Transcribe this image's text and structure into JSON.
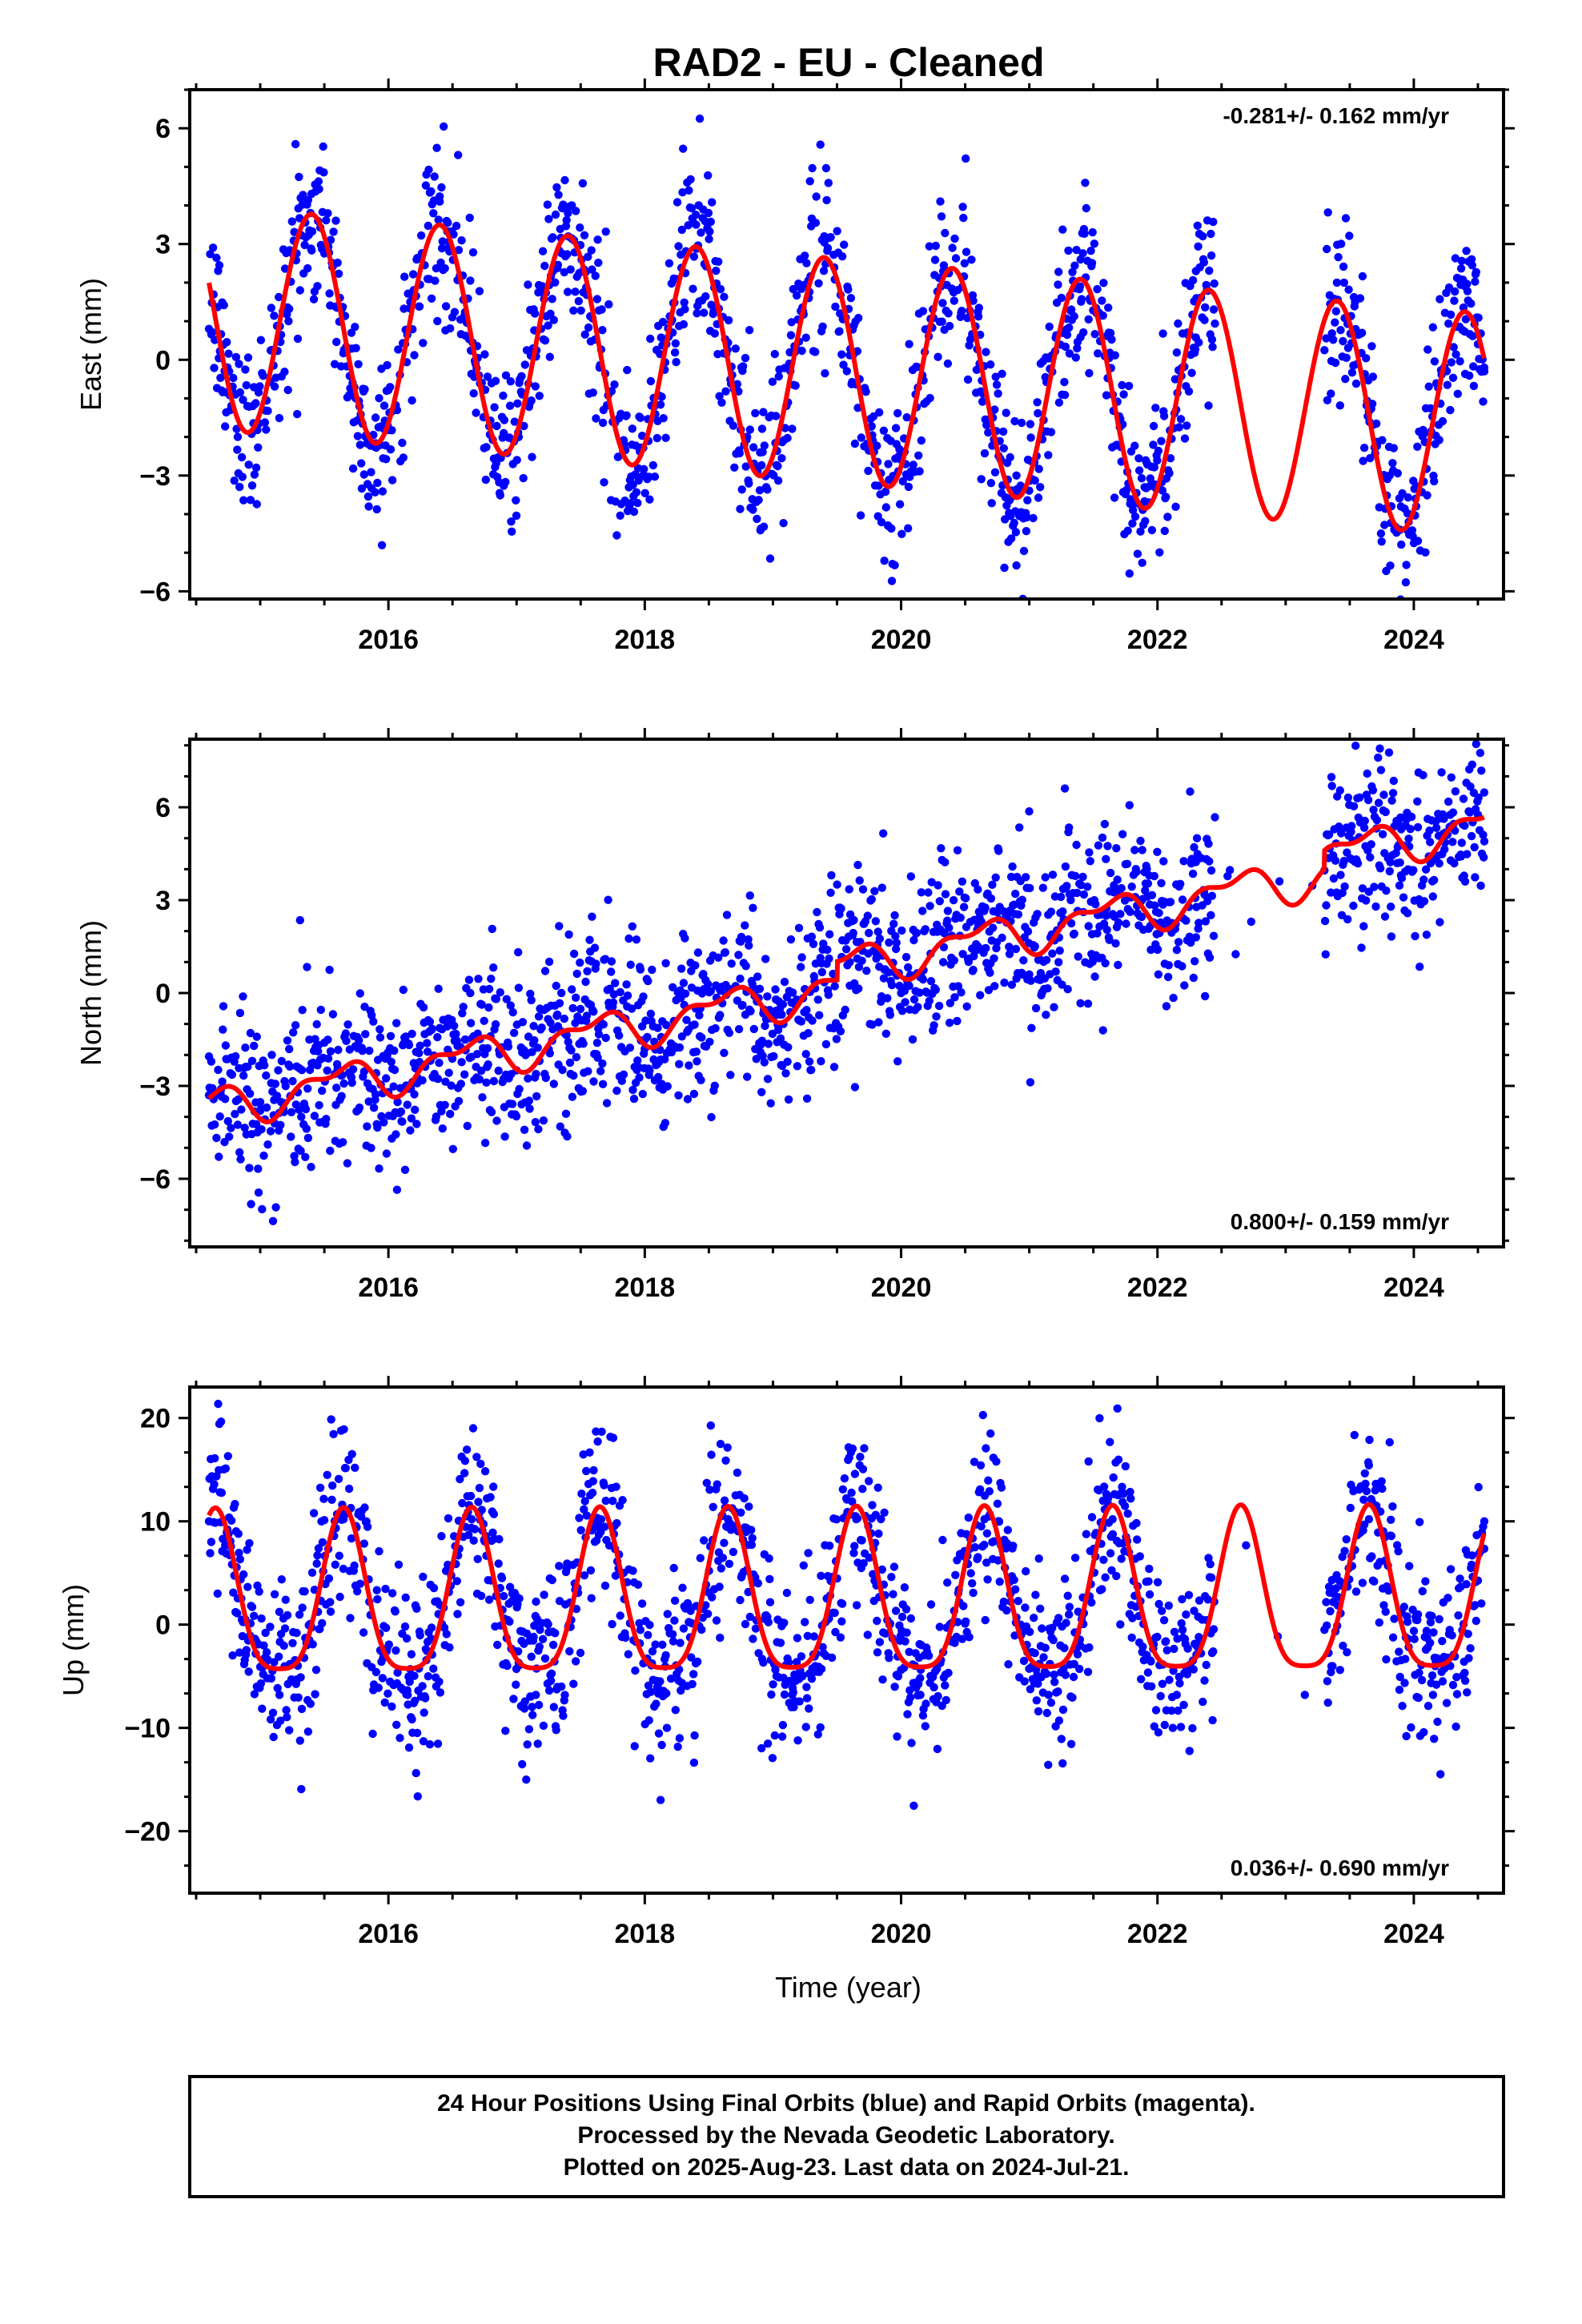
{
  "title": "RAD2  - EU - Cleaned",
  "footer": {
    "lines": [
      "24 Hour Positions Using Final Orbits (blue) and Rapid Orbits (magenta).",
      "Processed by the Nevada Geodetic Laboratory.",
      "Plotted on 2025-Aug-23. Last data on 2024-Jul-21."
    ]
  },
  "colors": {
    "data_points": "#0000ff",
    "model_fit": "#ff0000",
    "frame": "#000000"
  },
  "chart_data": [
    {
      "type": "scatter",
      "component": "east",
      "ylabel": "East (mm)",
      "xlabel": "",
      "xlim": [
        2014.45,
        2024.7
      ],
      "ylim": [
        -6.2,
        7.0
      ],
      "x_ticks": [
        2016,
        2018,
        2020,
        2022,
        2024
      ],
      "x_tick_labels": [
        "2016",
        "2018",
        "2020",
        "2022",
        "2024"
      ],
      "y_ticks": [
        -6,
        -3,
        0,
        3,
        6
      ],
      "y_tick_labels": [
        "−6",
        "−3",
        "0",
        "3",
        "6"
      ],
      "rate_label": "-0.281+/- 0.162 mm/yr",
      "rate_position": "top-right",
      "data_span": [
        2014.6,
        2024.55
      ],
      "gaps": [
        [
          2022.45,
          2023.3
        ]
      ],
      "series": [
        {
          "kind": "points",
          "x": [
            2014.6,
            2014.9,
            2015.4,
            2015.9,
            2016.4,
            2016.9,
            2017.4,
            2017.9,
            2018.4,
            2018.9,
            2019.4,
            2019.9,
            2020.4,
            2020.9,
            2021.4,
            2021.9,
            2022.3,
            2023.4,
            2023.9,
            2024.4,
            2024.55
          ],
          "y": [
            0.8,
            -1.2,
            4.3,
            -1.5,
            4.1,
            -1.9,
            3.8,
            -2.2,
            3.5,
            -2.4,
            3.2,
            -2.7,
            2.9,
            -3.0,
            2.6,
            -3.3,
            2.3,
            2.0,
            -3.8,
            1.9,
            -0.3
          ]
        },
        {
          "kind": "model",
          "model": {
            "t0": 2014.6,
            "t1": 2024.55,
            "offset": 1.1,
            "trend": -0.281,
            "amp1": 2.9,
            "phase1": 2015.4,
            "amp2": 0.0,
            "phase2": 2015.0,
            "jumps": []
          }
        }
      ]
    },
    {
      "type": "scatter",
      "component": "north",
      "ylabel": "North (mm)",
      "xlabel": "",
      "xlim": [
        2014.45,
        2024.7
      ],
      "ylim": [
        -8.2,
        8.2
      ],
      "x_ticks": [
        2016,
        2018,
        2020,
        2022,
        2024
      ],
      "x_tick_labels": [
        "2016",
        "2018",
        "2020",
        "2022",
        "2024"
      ],
      "y_ticks": [
        -6,
        -3,
        0,
        3,
        6
      ],
      "y_tick_labels": [
        "−6",
        "−3",
        "0",
        "3",
        "6"
      ],
      "rate_label": "0.800+/- 0.159 mm/yr",
      "rate_position": "bottom-right",
      "data_span": [
        2014.6,
        2024.55
      ],
      "gaps": [
        [
          2022.45,
          2023.3
        ]
      ],
      "series": [
        {
          "kind": "points",
          "x": [
            2014.6,
            2015.0,
            2015.6,
            2016.0,
            2016.6,
            2017.0,
            2017.6,
            2018.0,
            2018.6,
            2019.0,
            2019.6,
            2020.0,
            2020.6,
            2021.0,
            2021.6,
            2022.0,
            2022.3,
            2023.4,
            2023.9,
            2024.4,
            2024.55
          ],
          "y": [
            -3.3,
            -3.8,
            -2.3,
            -3.2,
            -1.5,
            -2.5,
            -0.6,
            -1.8,
            0.2,
            -0.8,
            1.0,
            0.0,
            1.5,
            0.6,
            2.5,
            1.4,
            1.8,
            3.2,
            3.8,
            3.6,
            4.9
          ]
        },
        {
          "kind": "model",
          "model": {
            "t0": 2014.6,
            "t1": 2024.55,
            "offset": 1.1,
            "trend": 0.8,
            "amp1": 0.55,
            "phase1": 2015.6,
            "amp2": 0.3,
            "phase2": 2015.3,
            "jumps": [
              [
                2019.5,
                0.6
              ],
              [
                2023.3,
                0.6
              ]
            ],
            "base": -3.7
          }
        }
      ]
    },
    {
      "type": "scatter",
      "component": "up",
      "ylabel": "Up (mm)",
      "xlabel": "Time (year)",
      "xlim": [
        2014.45,
        2024.7
      ],
      "ylim": [
        -26,
        23
      ],
      "x_ticks": [
        2016,
        2018,
        2020,
        2022,
        2024
      ],
      "x_tick_labels": [
        "2016",
        "2018",
        "2020",
        "2022",
        "2024"
      ],
      "y_ticks": [
        -20,
        -10,
        0,
        10,
        20
      ],
      "y_tick_labels": [
        "−20",
        "−10",
        "0",
        "10",
        "20"
      ],
      "rate_label": "0.036+/- 0.690 mm/yr",
      "rate_position": "bottom-right",
      "data_span": [
        2014.6,
        2024.55
      ],
      "gaps": [
        [
          2022.45,
          2023.3
        ]
      ],
      "series": [
        {
          "kind": "points",
          "x": [
            2014.6,
            2015.15,
            2015.65,
            2016.15,
            2016.65,
            2017.15,
            2017.65,
            2018.15,
            2018.65,
            2019.15,
            2019.65,
            2020.15,
            2020.65,
            2021.15,
            2021.65,
            2022.15,
            2023.15,
            2023.65,
            2024.15,
            2024.55
          ],
          "y": [
            10.0,
            -6.8,
            10.2,
            -6.8,
            10.2,
            -6.8,
            10.2,
            -6.8,
            10.2,
            -6.8,
            10.2,
            -6.8,
            10.2,
            -6.8,
            10.2,
            -6.8,
            -6.8,
            10.2,
            -6.8,
            10.0
          ]
        },
        {
          "kind": "model",
          "model": {
            "t0": 2014.6,
            "t1": 2024.55,
            "offset": 1.7,
            "trend": 0.036,
            "amp1": 7.8,
            "phase1": 2015.65,
            "amp2": 1.8,
            "phase2": 2015.65,
            "jumps": []
          }
        }
      ]
    }
  ]
}
